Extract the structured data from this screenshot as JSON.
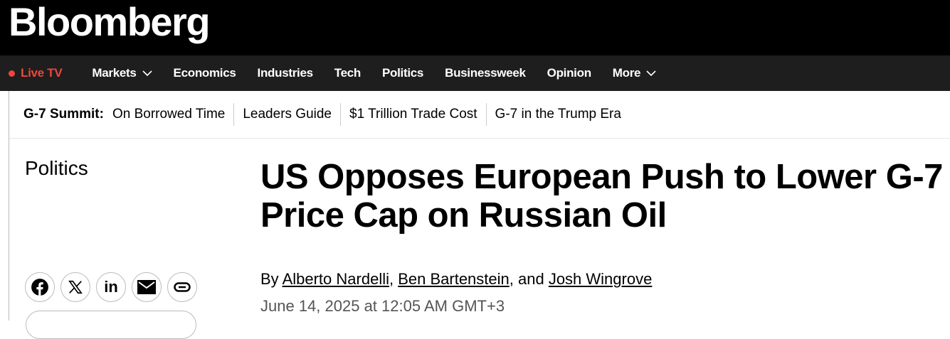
{
  "brand": "Bloomberg",
  "nav": {
    "live": "Live TV",
    "items": [
      "Markets",
      "Economics",
      "Industries",
      "Tech",
      "Politics",
      "Businessweek",
      "Opinion",
      "More"
    ],
    "accent": "#f0463c"
  },
  "subnav": {
    "label": "G-7 Summit:",
    "links": [
      "On Borrowed Time",
      "Leaders Guide",
      "$1 Trillion Trade Cost",
      "G-7 in the Trump Era"
    ]
  },
  "article": {
    "section": "Politics",
    "headline": "US Opposes European Push to Lower G-7 Price Cap on Russian Oil",
    "by": "By ",
    "authors": [
      "Alberto Nardelli",
      "Ben Bartenstein",
      "Josh Wingrove"
    ],
    "sep1": ", ",
    "sep2": ", and ",
    "date": "June 14, 2025 at 12:05 AM GMT+3"
  },
  "share": [
    "facebook-icon",
    "x-icon",
    "linkedin-icon",
    "email-icon",
    "link-icon"
  ]
}
